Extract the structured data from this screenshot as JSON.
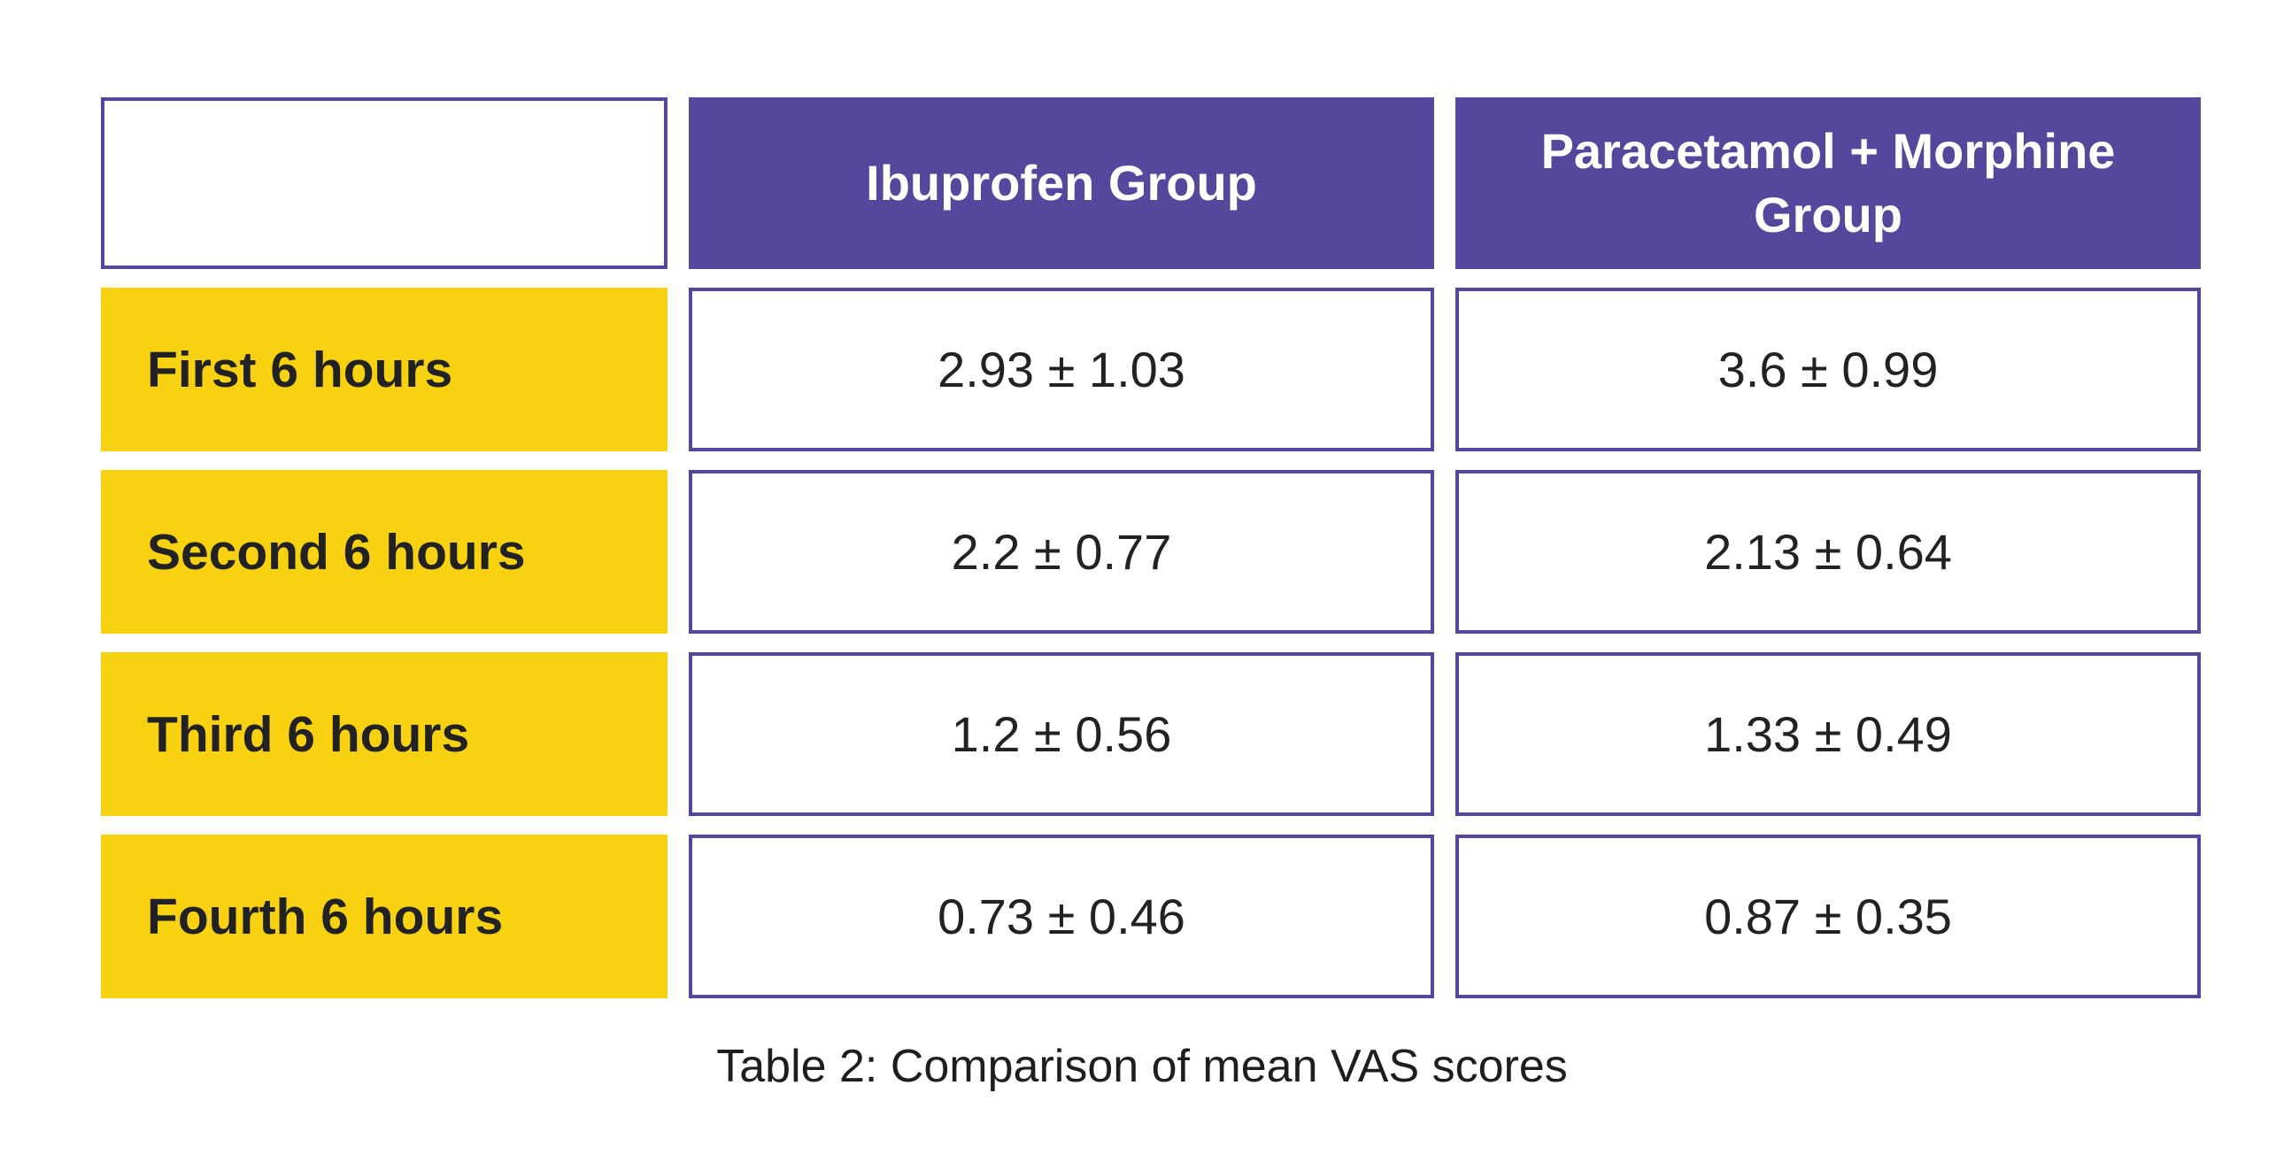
{
  "table": {
    "headers": [
      "",
      "Ibuprofen Group",
      "Paracetamol + Morphine Group"
    ],
    "rows": [
      {
        "label": "First 6 hours",
        "values": [
          "2.93 ± 1.03",
          "3.6 ± 0.99"
        ]
      },
      {
        "label": "Second 6 hours",
        "values": [
          "2.2 ± 0.77",
          "2.13 ± 0.64"
        ]
      },
      {
        "label": "Third 6 hours",
        "values": [
          "1.2 ± 0.56",
          "1.33 ± 0.49"
        ]
      },
      {
        "label": "Fourth 6 hours",
        "values": [
          "0.73 ± 0.46",
          "0.87 ± 0.35"
        ]
      }
    ]
  },
  "caption": "Table 2: Comparison of mean VAS scores",
  "colors": {
    "header_bg": "#55479b",
    "row_label_bg": "#f8d210",
    "border": "#54469a"
  }
}
